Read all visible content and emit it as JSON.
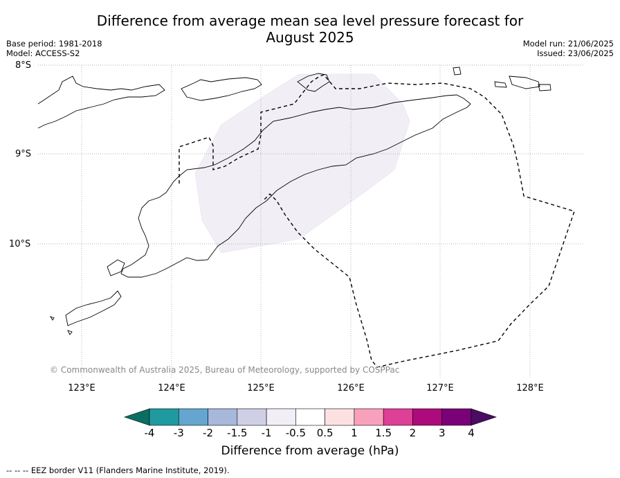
{
  "title_line1": "Difference from average mean sea level pressure forecast for",
  "title_line2": "August 2025",
  "meta_left": {
    "base_period": "Base period: 1981-2018",
    "model": "Model: ACCESS-S2"
  },
  "meta_right": {
    "model_run": "Model run: 21/06/2025",
    "issued": "Issued: 23/06/2025"
  },
  "lat_labels": [
    "8°S",
    "9°S",
    "10°S"
  ],
  "lon_labels": [
    "123°E",
    "124°E",
    "125°E",
    "126°E",
    "127°E",
    "128°E"
  ],
  "credit": "© Commonwealth of Australia 2025, Bureau of Meteorology, supported by COSPPac",
  "colorbar": {
    "title": "Difference from average (hPa)",
    "tick_labels": [
      "-4",
      "-3",
      "-2",
      "-1.5",
      "-1",
      "-0.5",
      "0.5",
      "1",
      "1.5",
      "2",
      "3",
      "4"
    ],
    "colors": {
      "below_min": "#0b6e64",
      "bins": [
        "#1f9aa0",
        "#64a6cf",
        "#a8b8db",
        "#cfcfe6",
        "#f2eef6",
        "#ffffff",
        "#fde1e2",
        "#f9a1bc",
        "#de3f97",
        "#ad0b7b",
        "#7a0177"
      ],
      "above_max": "#4b0c63"
    }
  },
  "map": {
    "shaded_anomaly_color": "#f2eef6",
    "shaded_anomaly_range": "-1 to -0.5 hPa",
    "coastline_color": "#000000",
    "eez_line": "dashed"
  },
  "footer": "--  --  -- EEZ border V11 (Flanders Marine Institute, 2019)."
}
